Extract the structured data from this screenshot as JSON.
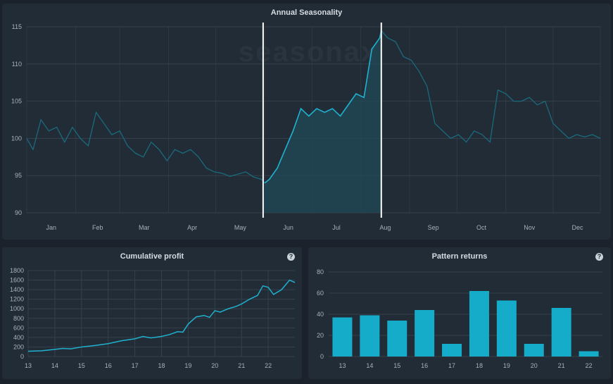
{
  "annual": {
    "watermark": "seasonax",
    "chart_data": {
      "type": "line",
      "title": "Annual Seasonality",
      "ylim": [
        90,
        115
      ],
      "yticks": [
        90,
        95,
        100,
        105,
        110,
        115
      ],
      "xticks": [
        "Jan",
        "Feb",
        "Mar",
        "Apr",
        "May",
        "Jun",
        "Jul",
        "Aug",
        "Sep",
        "Oct",
        "Nov",
        "Dec"
      ],
      "highlight": {
        "start_day": 151,
        "end_day": 226
      },
      "series": [
        {
          "x": [
            1,
            5,
            10,
            15,
            20,
            25,
            30,
            35,
            40,
            45,
            50,
            55,
            60,
            65,
            70,
            75,
            80,
            85,
            90,
            95,
            100,
            105,
            110,
            115,
            120,
            125,
            130,
            135,
            140,
            145,
            150,
            152,
            155,
            160,
            165,
            170,
            175,
            180,
            185,
            190,
            195,
            200,
            205,
            210,
            215,
            220,
            225,
            226,
            230,
            235,
            240,
            245,
            250,
            255,
            260,
            265,
            270,
            275,
            280,
            285,
            290,
            295,
            300,
            305,
            310,
            315,
            320,
            325,
            330,
            335,
            340,
            345,
            350,
            355,
            360,
            365
          ],
          "y": [
            100,
            98.5,
            102.5,
            101,
            101.5,
            99.5,
            101.5,
            100,
            99,
            103.5,
            102,
            100.5,
            101,
            99,
            98,
            97.5,
            99.5,
            98.5,
            97,
            98.5,
            98,
            98.5,
            97.5,
            96,
            95.5,
            95.3,
            94.9,
            95.2,
            95.5,
            94.8,
            94.5,
            94,
            94.5,
            96,
            98.5,
            101,
            104,
            103,
            104,
            103.5,
            104,
            103,
            104.5,
            106,
            105.5,
            112,
            113.5,
            114.5,
            113.5,
            113,
            111,
            110.5,
            109,
            107,
            102,
            101,
            100,
            100.5,
            99.5,
            101,
            100.5,
            99.5,
            106.5,
            106,
            105,
            105,
            105.5,
            104.5,
            105,
            102,
            101,
            100,
            100.5,
            100.2,
            100.5,
            100
          ]
        }
      ]
    }
  },
  "profit": {
    "help": "?",
    "chart_data": {
      "type": "line",
      "title": "Cumulative profit",
      "ylim": [
        0,
        1800
      ],
      "yticks": [
        0,
        200,
        400,
        600,
        800,
        1000,
        1200,
        1400,
        1600,
        1800
      ],
      "xticks": [
        "13",
        "14",
        "15",
        "16",
        "17",
        "18",
        "19",
        "20",
        "21",
        "22"
      ],
      "xlim": [
        13,
        23
      ],
      "series": [
        {
          "x": [
            13,
            13.5,
            14,
            14.3,
            14.6,
            15,
            15.5,
            16,
            16.5,
            17,
            17.3,
            17.6,
            18,
            18.3,
            18.6,
            18.8,
            19,
            19.3,
            19.6,
            19.8,
            20,
            20.2,
            20.5,
            20.8,
            21,
            21.3,
            21.6,
            21.8,
            22,
            22.2,
            22.5,
            22.8,
            23
          ],
          "y": [
            110,
            120,
            150,
            170,
            160,
            200,
            230,
            270,
            330,
            370,
            420,
            390,
            420,
            460,
            520,
            510,
            680,
            830,
            860,
            820,
            960,
            930,
            1000,
            1050,
            1100,
            1200,
            1280,
            1480,
            1450,
            1300,
            1400,
            1600,
            1550
          ]
        }
      ]
    }
  },
  "pattern": {
    "help": "?",
    "chart_data": {
      "type": "bar",
      "title": "Pattern returns",
      "ylim": [
        0,
        80
      ],
      "yticks": [
        0,
        20,
        40,
        60,
        80
      ],
      "categories": [
        "13",
        "14",
        "15",
        "16",
        "17",
        "18",
        "19",
        "20",
        "21",
        "22"
      ],
      "values": [
        37,
        39,
        34,
        44,
        12,
        62,
        53,
        12,
        46,
        5
      ]
    }
  },
  "colors": {
    "line": "#1fb1cf",
    "line_dim": "#1a6a7d",
    "bar": "#14acc8",
    "grid": "#34404b",
    "area": "#1f4a58"
  }
}
